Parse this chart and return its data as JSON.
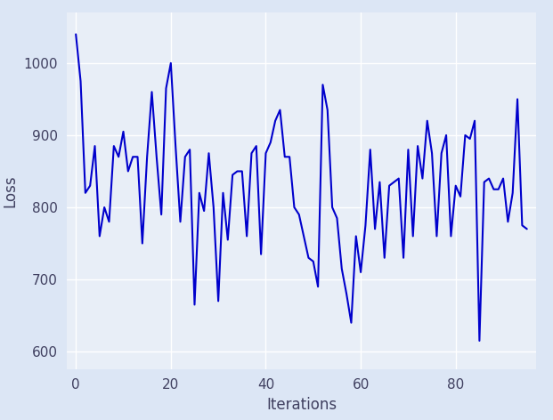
{
  "title": "",
  "xlabel": "Iterations",
  "ylabel": "Loss",
  "line_color": "#0000cc",
  "line_width": 1.5,
  "bg_color": "#e8eef7",
  "fig_bg_color": "#dce6f5",
  "xlim": [
    -2,
    97
  ],
  "ylim": [
    575,
    1070
  ],
  "xticks": [
    0,
    20,
    40,
    60,
    80
  ],
  "yticks": [
    600,
    700,
    800,
    900,
    1000
  ],
  "x": [
    0,
    1,
    2,
    3,
    4,
    5,
    6,
    7,
    8,
    9,
    10,
    11,
    12,
    13,
    14,
    15,
    16,
    17,
    18,
    19,
    20,
    21,
    22,
    23,
    24,
    25,
    26,
    27,
    28,
    29,
    30,
    31,
    32,
    33,
    34,
    35,
    36,
    37,
    38,
    39,
    40,
    41,
    42,
    43,
    44,
    45,
    46,
    47,
    48,
    49,
    50,
    51,
    52,
    53,
    54,
    55,
    56,
    57,
    58,
    59,
    60,
    61,
    62,
    63,
    64,
    65,
    66,
    67,
    68,
    69,
    70,
    71,
    72,
    73,
    74,
    75,
    76,
    77,
    78,
    79,
    80,
    81,
    82,
    83,
    84,
    85,
    86,
    87,
    88,
    89,
    90,
    91,
    92,
    93,
    94,
    95
  ],
  "y": [
    1040,
    975,
    820,
    830,
    885,
    760,
    800,
    780,
    885,
    870,
    905,
    850,
    870,
    870,
    750,
    870,
    960,
    870,
    790,
    965,
    1000,
    885,
    780,
    870,
    880,
    665,
    820,
    795,
    875,
    800,
    670,
    820,
    755,
    845,
    850,
    850,
    760,
    875,
    885,
    735,
    875,
    890,
    920,
    935,
    870,
    870,
    800,
    790,
    760,
    730,
    725,
    690,
    970,
    935,
    800,
    785,
    715,
    680,
    640,
    760,
    710,
    775,
    880,
    770,
    835,
    730,
    830,
    835,
    840,
    730,
    880,
    760,
    885,
    840,
    920,
    875,
    760,
    875,
    900,
    760,
    830,
    815,
    900,
    895,
    920,
    615,
    835,
    840,
    825,
    825,
    840,
    780,
    820,
    950,
    775,
    770
  ]
}
